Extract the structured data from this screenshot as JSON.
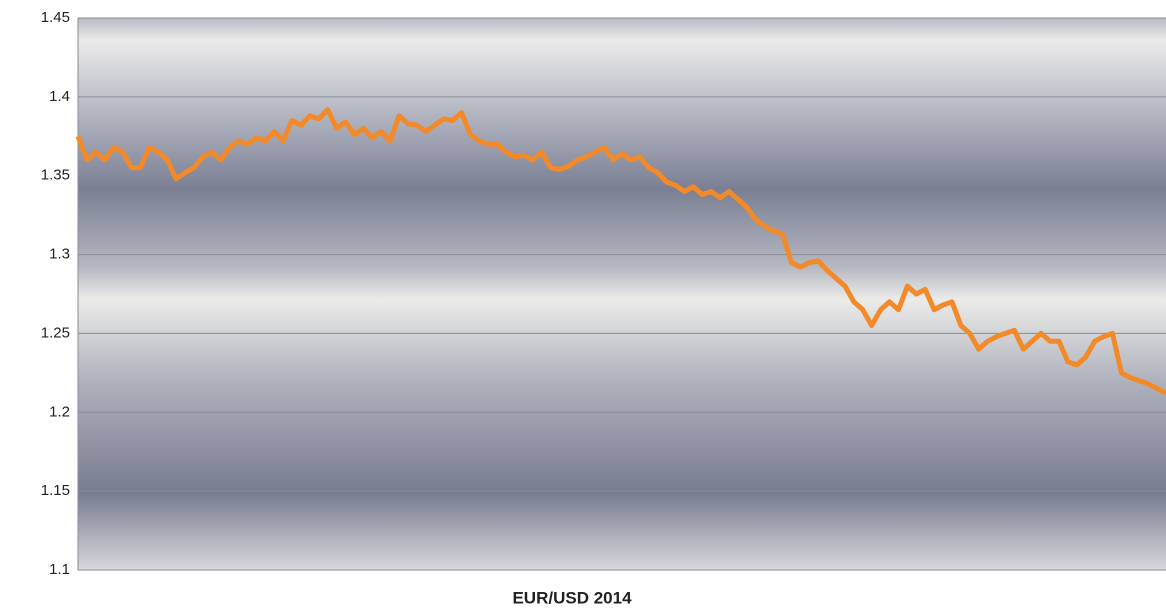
{
  "chart_data": {
    "type": "line",
    "x_label": "EUR/USD 2014",
    "series": [
      {
        "name": null,
        "color": "#f28a2a",
        "values": [
          1.375,
          1.36,
          1.365,
          1.36,
          1.368,
          1.365,
          1.355,
          1.355,
          1.368,
          1.365,
          1.36,
          1.348,
          1.352,
          1.355,
          1.362,
          1.365,
          1.36,
          1.368,
          1.372,
          1.37,
          1.374,
          1.372,
          1.378,
          1.372,
          1.385,
          1.382,
          1.388,
          1.386,
          1.392,
          1.38,
          1.384,
          1.376,
          1.38,
          1.374,
          1.378,
          1.372,
          1.388,
          1.383,
          1.382,
          1.378,
          1.382,
          1.386,
          1.385,
          1.39,
          1.376,
          1.372,
          1.37,
          1.37,
          1.365,
          1.362,
          1.363,
          1.36,
          1.365,
          1.355,
          1.354,
          1.356,
          1.36,
          1.362,
          1.365,
          1.368,
          1.36,
          1.364,
          1.36,
          1.362,
          1.355,
          1.352,
          1.346,
          1.344,
          1.34,
          1.343,
          1.338,
          1.34,
          1.336,
          1.34,
          1.335,
          1.33,
          1.322,
          1.318,
          1.315,
          1.313,
          1.295,
          1.292,
          1.295,
          1.296,
          1.29,
          1.285,
          1.28,
          1.27,
          1.265,
          1.255,
          1.265,
          1.27,
          1.265,
          1.28,
          1.275,
          1.278,
          1.265,
          1.268,
          1.27,
          1.255,
          1.25,
          1.24,
          1.245,
          1.248,
          1.25,
          1.252,
          1.24,
          1.245,
          1.25,
          1.245,
          1.245,
          1.232,
          1.23,
          1.235,
          1.245,
          1.248,
          1.25,
          1.225,
          1.222,
          1.22,
          1.218,
          1.215,
          1.212
        ]
      }
    ],
    "ylim": [
      1.1,
      1.45
    ],
    "yticks": [
      1.1,
      1.15,
      1.2,
      1.25,
      1.3,
      1.35,
      1.4,
      1.45
    ],
    "grid": true
  }
}
